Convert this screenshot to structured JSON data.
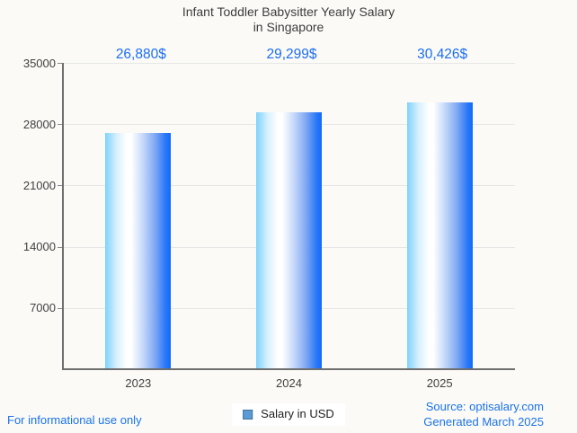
{
  "title": {
    "line1": "Infant Toddler Babysitter Yearly Salary",
    "line2": "in Singapore"
  },
  "chart_data": {
    "type": "bar",
    "title": "Infant Toddler Babysitter Yearly Salary in Singapore",
    "categories": [
      "2023",
      "2024",
      "2025"
    ],
    "values": [
      26880,
      29299,
      30426
    ],
    "value_labels": [
      "26,880$",
      "29,299$",
      "30,426$"
    ],
    "series_name": "Salary in USD",
    "xlabel": "",
    "ylabel": "",
    "ylim": [
      0,
      35000
    ],
    "yticks": [
      7000,
      14000,
      21000,
      28000,
      35000
    ],
    "grid": true,
    "legend_position": "bottom",
    "bar_gradient": [
      {
        "pos": 0.0,
        "color": "#7fd2fb"
      },
      {
        "pos": 0.18,
        "color": "#d9f1fe"
      },
      {
        "pos": 0.33,
        "color": "#ffffff"
      },
      {
        "pos": 0.4,
        "color": "#ffffff"
      },
      {
        "pos": 0.58,
        "color": "#c3d7fa"
      },
      {
        "pos": 0.75,
        "color": "#85abf4"
      },
      {
        "pos": 0.92,
        "color": "#2b78f7"
      },
      {
        "pos": 1.0,
        "color": "#0d6bfc"
      }
    ]
  },
  "legend": {
    "label": "Salary in USD",
    "swatch_color": "#5b9bd5",
    "swatch_border": "#41719c"
  },
  "footer": {
    "left": "For informational use only",
    "source": "Source: optisalary.com",
    "generated": "Generated March 2025"
  },
  "colors": {
    "background": "#fbfaf7",
    "title_text": "#3c3c3c",
    "axis": "#6e6e6e",
    "grid": "#e6e6e6",
    "tick_text": "#3f3f3f",
    "value_label": "#1b6ef3",
    "footer_text": "#1a73e8"
  }
}
